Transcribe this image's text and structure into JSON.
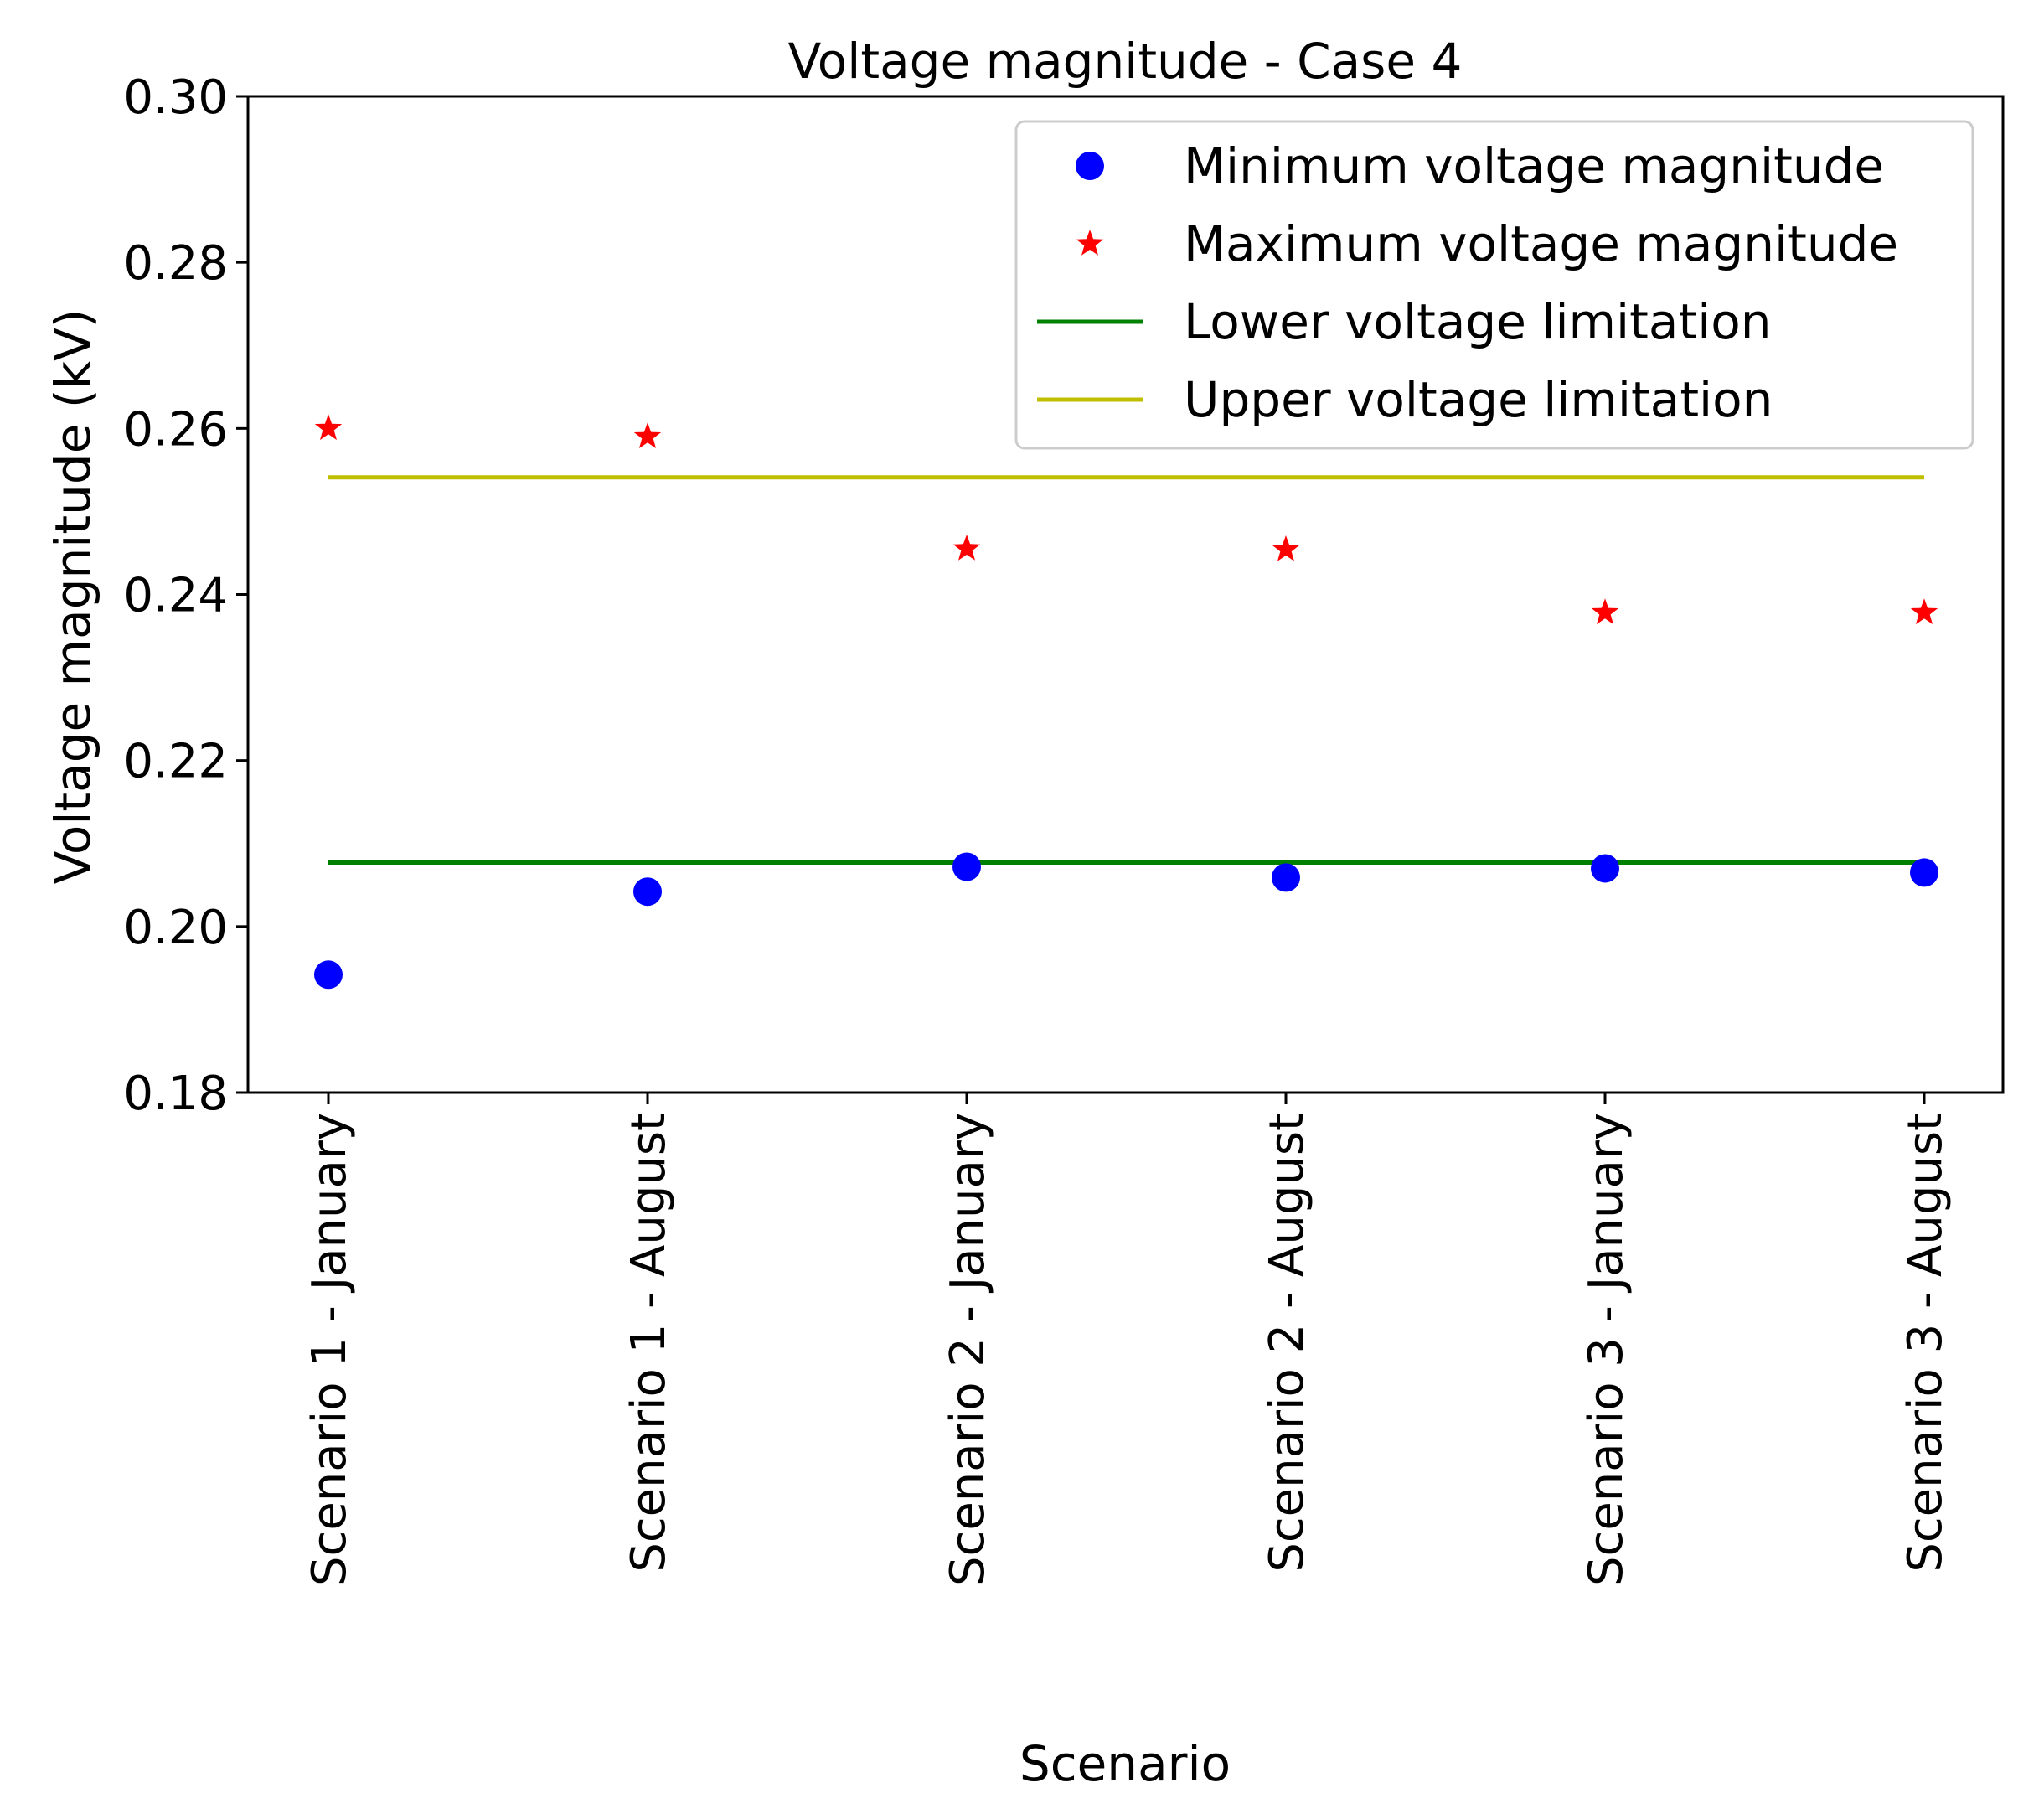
{
  "chart_data": {
    "type": "scatter",
    "title": "Voltage magnitude - Case 4",
    "xlabel": "Scenario",
    "ylabel": "Voltage magnitude (kV)",
    "categories": [
      "Scenario 1 - January",
      "Scenario 1 - August",
      "Scenario 2 - January",
      "Scenario 2 - August",
      "Scenario 3 - January",
      "Scenario 3 - August"
    ],
    "ylim": [
      0.18,
      0.3
    ],
    "yticks": [
      "0.18",
      "0.20",
      "0.22",
      "0.24",
      "0.26",
      "0.28",
      "0.30"
    ],
    "series": [
      {
        "name": "Minimum voltage magnitude",
        "marker": "circle",
        "color": "#0000ff",
        "values": [
          0.1942,
          0.2042,
          0.2072,
          0.2059,
          0.207,
          0.2065
        ]
      },
      {
        "name": "Maximum voltage magnitude",
        "marker": "star",
        "color": "#ff0000",
        "values": [
          0.26,
          0.259,
          0.2455,
          0.2454,
          0.2378,
          0.2378
        ]
      },
      {
        "name": "Lower voltage limitation",
        "marker": "line",
        "color": "#008000",
        "value": 0.2077
      },
      {
        "name": "Upper voltage limitation",
        "marker": "line",
        "color": "#bfbf00",
        "value": 0.2541
      }
    ],
    "legend_position": "top-right",
    "grid": false
  }
}
